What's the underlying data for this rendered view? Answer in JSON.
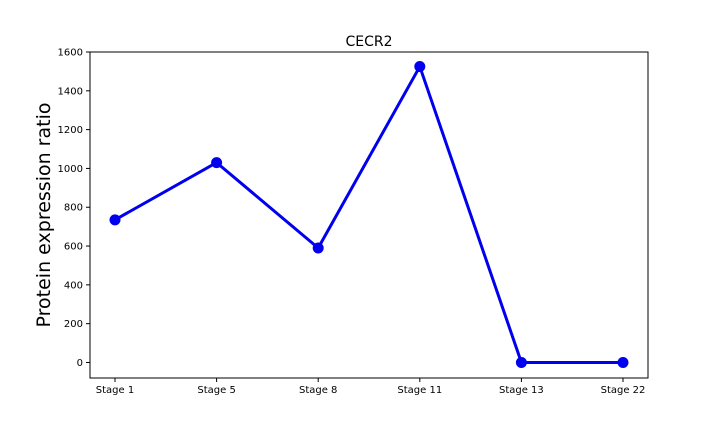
{
  "chart_data": {
    "type": "line",
    "title": "CECR2",
    "xlabel": "",
    "ylabel": "Protein expression ratio",
    "categories": [
      "Stage 1",
      "Stage 5",
      "Stage 8",
      "Stage 11",
      "Stage 13",
      "Stage 22"
    ],
    "series": [
      {
        "values": [
          735,
          1030,
          590,
          1525,
          0,
          0
        ],
        "color": "#0000ee"
      }
    ],
    "ylim": [
      -80,
      1600
    ],
    "yticks": [
      0,
      200,
      400,
      600,
      800,
      1000,
      1200,
      1400,
      1600
    ],
    "grid": false,
    "legend": "none"
  }
}
